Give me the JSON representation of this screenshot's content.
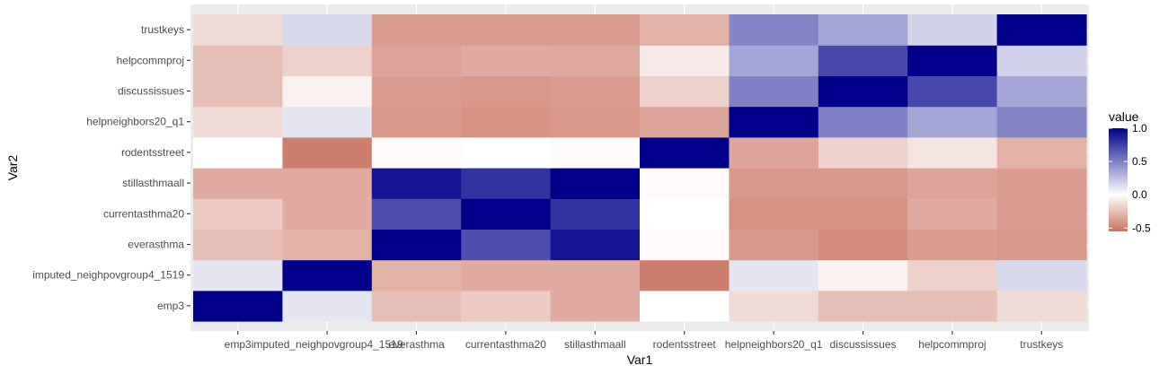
{
  "chart_data": {
    "type": "heatmap",
    "xlabel": "Var1",
    "ylabel": "Var2",
    "x_categories": [
      "emp3",
      "imputed_neighpovgroup4_1519",
      "everasthma",
      "currentasthma20",
      "stillasthmaall",
      "rodentsstreet",
      "helpneighbors20_q1",
      "discussissues",
      "helpcommproj",
      "trustkeys"
    ],
    "y_categories": [
      "emp3",
      "imputed_neighpovgroup4_1519",
      "everasthma",
      "currentasthma20",
      "stillasthmaall",
      "rodentsstreet",
      "helpneighbors20_q1",
      "discussissues",
      "helpcommproj",
      "trustkeys"
    ],
    "values": [
      [
        1.0,
        0.1,
        -0.25,
        -0.2,
        -0.32,
        0.0,
        -0.14,
        -0.25,
        -0.25,
        -0.14
      ],
      [
        0.1,
        1.0,
        -0.3,
        -0.32,
        -0.32,
        -0.5,
        0.1,
        -0.05,
        -0.18,
        0.15
      ],
      [
        -0.25,
        -0.3,
        1.0,
        0.7,
        0.92,
        -0.02,
        -0.4,
        -0.45,
        -0.38,
        -0.4
      ],
      [
        -0.2,
        -0.32,
        0.7,
        1.0,
        0.8,
        0.0,
        -0.42,
        -0.42,
        -0.32,
        -0.38
      ],
      [
        -0.32,
        -0.32,
        0.92,
        0.8,
        1.0,
        -0.02,
        -0.4,
        -0.4,
        -0.35,
        -0.38
      ],
      [
        0.0,
        -0.5,
        -0.02,
        0.0,
        -0.02,
        1.0,
        -0.35,
        -0.18,
        -0.1,
        -0.3
      ],
      [
        -0.14,
        0.1,
        -0.4,
        -0.42,
        -0.4,
        -0.35,
        1.0,
        0.5,
        0.35,
        0.48
      ],
      [
        -0.25,
        -0.05,
        -0.38,
        -0.4,
        -0.38,
        -0.18,
        0.5,
        1.0,
        0.72,
        0.35
      ],
      [
        -0.25,
        -0.18,
        -0.35,
        -0.32,
        -0.33,
        -0.08,
        0.35,
        0.72,
        1.0,
        0.18
      ],
      [
        -0.14,
        0.15,
        -0.38,
        -0.38,
        -0.38,
        -0.3,
        0.48,
        0.35,
        0.18,
        1.0
      ]
    ],
    "legend": {
      "title": "value",
      "ticks": [
        "1.0",
        "0.5",
        "0.0",
        "-0.5"
      ],
      "tick_values": [
        1.0,
        0.5,
        0.0,
        -0.5
      ],
      "range": [
        -0.55,
        1.0
      ],
      "placement": "right"
    },
    "colors": {
      "low": "#c9715e",
      "mid": "#ffffff",
      "high": "#00008b",
      "panel_background": "#ebebeb",
      "grid": "#ffffff"
    }
  }
}
